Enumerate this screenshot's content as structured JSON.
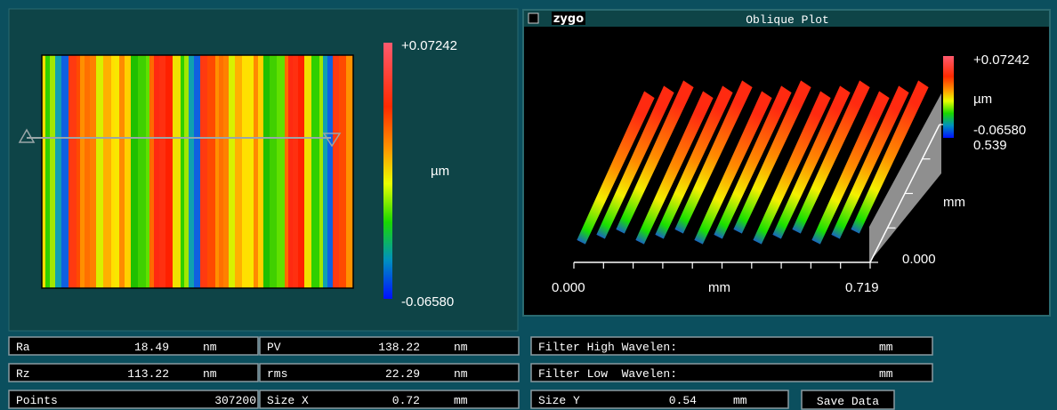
{
  "surface_map": {
    "scale_max": "+0.07242",
    "scale_unit": "µm",
    "scale_min": "-0.06580"
  },
  "oblique_plot": {
    "logo": "zygo",
    "title": "Oblique Plot",
    "scale_max": "+0.07242",
    "scale_unit": "µm",
    "scale_min": "-0.06580",
    "y_max": "0.539",
    "y_unit": "mm",
    "y_min": "0.000",
    "x_min": "0.000",
    "x_unit": "mm",
    "x_max": "0.719"
  },
  "results": [
    [
      {
        "label": "Ra",
        "value": "18.49",
        "unit": "nm"
      },
      {
        "label": "PV",
        "value": "138.22",
        "unit": "nm"
      },
      {
        "label": "Filter High Wavelen:",
        "unit": "mm"
      }
    ],
    [
      {
        "label": "Rz",
        "value": "113.22",
        "unit": "nm"
      },
      {
        "label": "rms",
        "value": "22.29",
        "unit": "nm"
      },
      {
        "label": "Filter Low  Wavelen:",
        "unit": "mm"
      }
    ],
    [
      {
        "label": "Points",
        "value": "307200"
      },
      {
        "label": "Size X",
        "value": "0.72",
        "unit": "mm"
      },
      {
        "label": "Size Y",
        "value": "0.54",
        "unit": "mm"
      }
    ]
  ],
  "button": "Save Data"
}
